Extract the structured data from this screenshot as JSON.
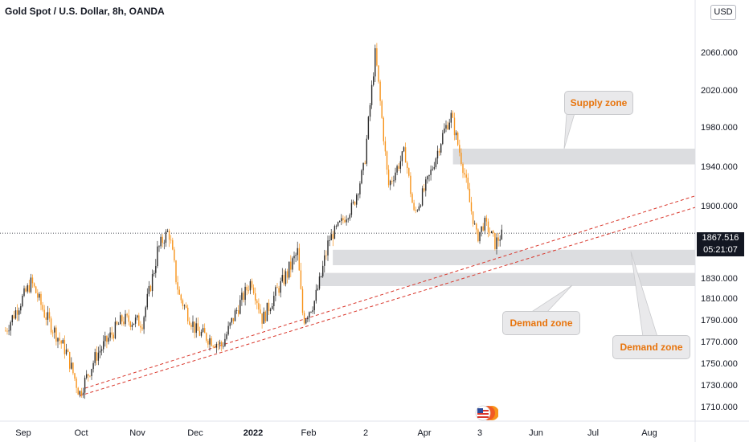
{
  "header": {
    "title": "Gold Spot / U.S. Dollar, 8h, OANDA",
    "currency_button": "USD"
  },
  "price_tag": {
    "price": "1867.516",
    "countdown": "05:21:07"
  },
  "annotations": {
    "supply": "Supply zone",
    "demand_1": "Demand zone",
    "demand_2": "Demand zone"
  },
  "colors": {
    "candle_up": "#2b2b2b",
    "candle_down": "#f7931a",
    "zone_fill": "#dcdde0",
    "trendline": "#d9372c",
    "callout_text": "#e8740c"
  },
  "chart_data": {
    "type": "candlestick",
    "title": "Gold Spot / U.S. Dollar, 8h, OANDA",
    "y_axis": {
      "ticks": [
        1710,
        1730,
        1750,
        1770,
        1790,
        1810,
        1830,
        1900,
        1940,
        1980,
        2020,
        2060
      ],
      "tick_labels": [
        "1710.000",
        "1730.000",
        "1750.000",
        "1770.000",
        "1790.000",
        "1810.000",
        "1830.000",
        "1900.000",
        "1940.000",
        "1980.000",
        "2020.000",
        "2060.000"
      ],
      "position": "right",
      "unit": "USD"
    },
    "x_axis": {
      "tick_labels": [
        "Sep",
        "Oct",
        "Nov",
        "Dec",
        "2022",
        "Feb",
        "2",
        "Apr",
        "3",
        "Jun",
        "Jul",
        "Aug"
      ],
      "range": [
        "2021-08-17",
        "2022-08-28"
      ]
    },
    "last_price": 1867.516,
    "close_path": [
      [
        "2021-08-20",
        1780
      ],
      [
        "2021-09-03",
        1826
      ],
      [
        "2021-09-10",
        1796
      ],
      [
        "2021-09-22",
        1760
      ],
      [
        "2021-09-29",
        1722
      ],
      [
        "2021-10-08",
        1757
      ],
      [
        "2021-10-22",
        1790
      ],
      [
        "2021-11-02",
        1788
      ],
      [
        "2021-11-10",
        1850
      ],
      [
        "2021-11-16",
        1870
      ],
      [
        "2021-11-22",
        1812
      ],
      [
        "2021-12-01",
        1780
      ],
      [
        "2021-12-15",
        1766
      ],
      [
        "2021-12-22",
        1795
      ],
      [
        "2021-12-31",
        1828
      ],
      [
        "2022-01-06",
        1790
      ],
      [
        "2022-01-14",
        1818
      ],
      [
        "2022-01-25",
        1850
      ],
      [
        "2022-01-28",
        1790
      ],
      [
        "2022-02-03",
        1807
      ],
      [
        "2022-02-11",
        1860
      ],
      [
        "2022-02-24",
        1900
      ],
      [
        "2022-03-02",
        1940
      ],
      [
        "2022-03-08",
        2060
      ],
      [
        "2022-03-15",
        1920
      ],
      [
        "2022-03-24",
        1955
      ],
      [
        "2022-03-29",
        1890
      ],
      [
        "2022-04-06",
        1928
      ],
      [
        "2022-04-14",
        1975
      ],
      [
        "2022-04-18",
        1992
      ],
      [
        "2022-04-25",
        1935
      ],
      [
        "2022-05-02",
        1862
      ],
      [
        "2022-05-06",
        1880
      ],
      [
        "2022-05-12",
        1857
      ],
      [
        "2022-05-16",
        1867.5
      ]
    ],
    "zones": [
      {
        "label": "Supply zone",
        "from": "2022-04-19",
        "low": 1942,
        "high": 1958
      },
      {
        "label": "Demand zone",
        "from": "2022-02-13",
        "low": 1840,
        "high": 1852
      },
      {
        "label": "Demand zone",
        "from": "2022-02-06",
        "low": 1822,
        "high": 1834
      }
    ],
    "trendlines": [
      {
        "style": "dashed",
        "from": [
          "2021-09-29",
          1720
        ],
        "to": [
          "2022-08-28",
          1898
        ]
      },
      {
        "style": "dashed",
        "from": [
          "2021-10-02",
          1727
        ],
        "to": [
          "2022-08-28",
          1910
        ]
      }
    ]
  }
}
